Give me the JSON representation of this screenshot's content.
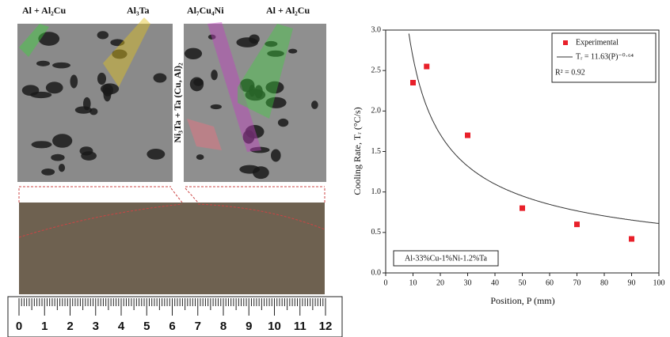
{
  "images": {
    "labels": [
      "Al + Al₂Cu",
      "Al₃Ta",
      "Al₇Cu₄Ni",
      "Al + Al₂Cu"
    ],
    "vertical_label": "Ni₃Ta + Ta (Cu, Al)₂"
  },
  "ruler": {
    "labels": [
      0,
      1,
      2,
      3,
      4,
      5,
      6,
      7,
      8,
      9,
      10,
      11,
      12
    ]
  },
  "chart_data": {
    "type": "scatter",
    "x_label": "Position, P (mm)",
    "y_label": "Cooling Rate, Tᵣ (°C/s)",
    "annotation": "Al-33%Cu-1%Ni-1.2%Ta",
    "series": [
      {
        "name": "Experimental",
        "color": "#e8202a",
        "x": [
          10,
          15,
          30,
          50,
          70,
          90
        ],
        "values": [
          2.35,
          2.55,
          1.7,
          0.8,
          0.6,
          0.42
        ]
      }
    ],
    "fit": {
      "name": "Tᵣ = 11.63(P)⁻⁰·⁶⁴",
      "coefficient": 11.63,
      "exponent": -0.64,
      "color": "#333333",
      "r2_label": "R² = 0.92"
    },
    "xlim": [
      0,
      100
    ],
    "xticks": [
      0,
      10,
      20,
      30,
      40,
      50,
      60,
      70,
      80,
      90,
      100
    ],
    "ylim": [
      0,
      3
    ],
    "yticks": [
      {
        "value": 0,
        "label": "0.0"
      },
      0.5,
      {
        "value": 1,
        "label": "1.0"
      },
      1.5,
      {
        "value": 2,
        "label": "2.0"
      },
      2.5,
      {
        "value": 3,
        "label": "3.0"
      }
    ],
    "legend": "top-right"
  }
}
